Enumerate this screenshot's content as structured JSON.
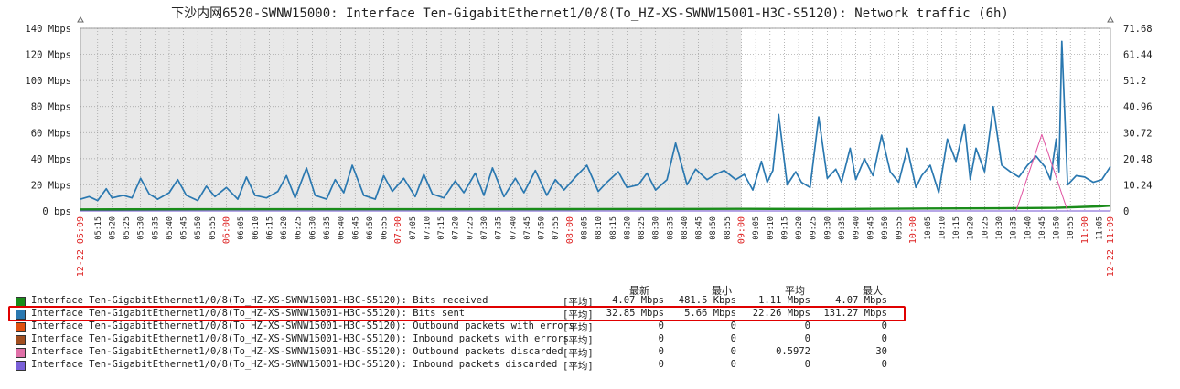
{
  "chart_data": {
    "type": "line",
    "title": "下沙内网6520-SWNW15000: Interface Ten-GigabitEthernet1/0/8(To_HZ-XS-SWNW15001-H3C-S5120): Network traffic (6h)",
    "ylabel_left_ticks": [
      "0 bps",
      "20 Mbps",
      "40 Mbps",
      "60 Mbps",
      "80 Mbps",
      "100 Mbps",
      "120 Mbps",
      "140 Mbps"
    ],
    "ylim_left": [
      0,
      140
    ],
    "ylabel_right_ticks": [
      "0",
      "10.24",
      "20.48",
      "30.72",
      "40.96",
      "51.2",
      "61.44",
      "71.68"
    ],
    "ylim_right": [
      0,
      71.68
    ],
    "x_start_label": "12-22 05:09",
    "x_end_label": "12-22 11:09",
    "x_hour_labels": [
      "06:00",
      "07:00",
      "08:00",
      "09:00",
      "10:00",
      "11:00"
    ],
    "x_minute_labels": [
      "05:15",
      "05:20",
      "05:25",
      "05:30",
      "05:35",
      "05:40",
      "05:45",
      "05:50",
      "05:55",
      "06:05",
      "06:10",
      "06:15",
      "06:20",
      "06:25",
      "06:30",
      "06:35",
      "06:40",
      "06:45",
      "06:50",
      "06:55",
      "07:05",
      "07:10",
      "07:15",
      "07:20",
      "07:25",
      "07:30",
      "07:35",
      "07:40",
      "07:45",
      "07:50",
      "07:55",
      "08:05",
      "08:10",
      "08:15",
      "08:20",
      "08:25",
      "08:30",
      "08:35",
      "08:40",
      "08:45",
      "08:50",
      "08:55",
      "09:05",
      "09:10",
      "09:15",
      "09:20",
      "09:25",
      "09:30",
      "09:35",
      "09:40",
      "09:45",
      "09:50",
      "09:55",
      "10:05",
      "10:10",
      "10:15",
      "10:20",
      "10:25",
      "10:30",
      "10:35",
      "10:40",
      "10:45",
      "10:50",
      "10:55",
      "11:05"
    ],
    "grid": true,
    "shaded_period": "05:09 - 09:00",
    "series": [
      {
        "name": "Bits received",
        "color": "#1a8c1a",
        "axis": "left",
        "unit": "Mbps",
        "x": [
          "05:09",
          "06:00",
          "07:00",
          "08:00",
          "09:00",
          "09:30",
          "10:00",
          "10:30",
          "10:50",
          "11:05",
          "11:09"
        ],
        "y": [
          1.2,
          1.3,
          1.3,
          1.4,
          1.6,
          1.5,
          1.8,
          2.0,
          2.4,
          3.5,
          4.07
        ]
      },
      {
        "name": "Bits sent",
        "color": "#2a78b0",
        "axis": "left",
        "unit": "Mbps",
        "x": [
          "05:09",
          "05:12",
          "05:15",
          "05:18",
          "05:20",
          "05:24",
          "05:27",
          "05:30",
          "05:33",
          "05:36",
          "05:40",
          "05:43",
          "05:46",
          "05:50",
          "05:53",
          "05:56",
          "06:00",
          "06:04",
          "06:07",
          "06:10",
          "06:14",
          "06:18",
          "06:21",
          "06:24",
          "06:28",
          "06:31",
          "06:35",
          "06:38",
          "06:41",
          "06:44",
          "06:48",
          "06:52",
          "06:55",
          "06:58",
          "07:02",
          "07:06",
          "07:09",
          "07:12",
          "07:16",
          "07:20",
          "07:23",
          "07:27",
          "07:30",
          "07:33",
          "07:37",
          "07:41",
          "07:44",
          "07:48",
          "07:52",
          "07:55",
          "07:58",
          "08:02",
          "08:06",
          "08:10",
          "08:13",
          "08:17",
          "08:20",
          "08:24",
          "08:27",
          "08:30",
          "08:34",
          "08:37",
          "08:41",
          "08:44",
          "08:48",
          "08:51",
          "08:54",
          "08:58",
          "09:01",
          "09:04",
          "09:07",
          "09:09",
          "09:11",
          "09:13",
          "09:16",
          "09:19",
          "09:21",
          "09:24",
          "09:27",
          "09:30",
          "09:33",
          "09:35",
          "09:38",
          "09:40",
          "09:43",
          "09:46",
          "09:49",
          "09:52",
          "09:55",
          "09:58",
          "10:01",
          "10:03",
          "10:06",
          "10:09",
          "10:12",
          "10:15",
          "10:18",
          "10:20",
          "10:22",
          "10:25",
          "10:28",
          "10:31",
          "10:34",
          "10:37",
          "10:40",
          "10:43",
          "10:46",
          "10:48",
          "10:50",
          "10:51",
          "10:52",
          "10:54",
          "10:57",
          "11:00",
          "11:03",
          "11:06",
          "11:09"
        ],
        "y": [
          9,
          11,
          8,
          17,
          10,
          12,
          10,
          25,
          13,
          9,
          14,
          24,
          12,
          8,
          19,
          11,
          18,
          9,
          26,
          12,
          10,
          15,
          27,
          10,
          33,
          12,
          9,
          24,
          14,
          35,
          12,
          9,
          27,
          15,
          25,
          11,
          28,
          13,
          10,
          23,
          14,
          29,
          12,
          33,
          11,
          25,
          14,
          31,
          12,
          24,
          16,
          26,
          35,
          15,
          22,
          30,
          18,
          20,
          29,
          16,
          24,
          52,
          20,
          32,
          24,
          28,
          31,
          24,
          28,
          16,
          38,
          22,
          31,
          74,
          20,
          30,
          22,
          18,
          72,
          25,
          32,
          22,
          48,
          24,
          40,
          27,
          58,
          30,
          22,
          48,
          18,
          27,
          35,
          14,
          55,
          38,
          66,
          24,
          48,
          30,
          80,
          35,
          30,
          26,
          35,
          42,
          34,
          24,
          55,
          30,
          130,
          20,
          27,
          26,
          22,
          24,
          34
        ]
      },
      {
        "name": "Outbound packets with errors",
        "color": "#e05010",
        "axis": "right",
        "unit": "",
        "x": [
          "05:09",
          "11:09"
        ],
        "y": [
          0,
          0
        ]
      },
      {
        "name": "Inbound packets with errors",
        "color": "#a04e20",
        "axis": "right",
        "unit": "",
        "x": [
          "05:09",
          "11:09"
        ],
        "y": [
          0,
          0
        ]
      },
      {
        "name": "Outbound packets discarded",
        "color": "#e050a0",
        "axis": "right",
        "unit": "",
        "x": [
          "05:09",
          "10:36",
          "10:45",
          "10:54",
          "11:09"
        ],
        "y": [
          0,
          0,
          30,
          0,
          0
        ]
      },
      {
        "name": "Inbound packets discarded",
        "color": "#7050d0",
        "axis": "right",
        "unit": "",
        "x": [
          "05:09",
          "11:09"
        ],
        "y": [
          0,
          0
        ]
      }
    ]
  },
  "legend": {
    "headers": {
      "last": "最新",
      "min": "最小",
      "avg": "平均",
      "max": "最大"
    },
    "rows": [
      {
        "color": "#1a8c1a",
        "name": "Interface Ten-GigabitEthernet1/0/8(To_HZ-XS-SWNW15001-H3C-S5120): Bits received",
        "func": "[平均]",
        "last": "4.07 Mbps",
        "min": "481.5 Kbps",
        "avg": "1.11 Mbps",
        "max": "4.07 Mbps"
      },
      {
        "color": "#2a78b0",
        "name": "Interface Ten-GigabitEthernet1/0/8(To_HZ-XS-SWNW15001-H3C-S5120): Bits sent",
        "func": "[平均]",
        "last": "32.85 Mbps",
        "min": "5.66 Mbps",
        "avg": "22.26 Mbps",
        "max": "131.27 Mbps"
      },
      {
        "color": "#e05010",
        "name": "Interface Ten-GigabitEthernet1/0/8(To_HZ-XS-SWNW15001-H3C-S5120): Outbound packets with errors",
        "func": "[平均]",
        "last": "0",
        "min": "0",
        "avg": "0",
        "max": "0"
      },
      {
        "color": "#a04e20",
        "name": "Interface Ten-GigabitEthernet1/0/8(To_HZ-XS-SWNW15001-H3C-S5120): Inbound packets with errors",
        "func": "[平均]",
        "last": "0",
        "min": "0",
        "avg": "0",
        "max": "0"
      },
      {
        "color": "#e070a8",
        "name": "Interface Ten-GigabitEthernet1/0/8(To_HZ-XS-SWNW15001-H3C-S5120): Outbound packets discarded",
        "func": "[平均]",
        "last": "0",
        "min": "0",
        "avg": "0.5972",
        "max": "30"
      },
      {
        "color": "#7a60d8",
        "name": "Interface Ten-GigabitEthernet1/0/8(To_HZ-XS-SWNW15001-H3C-S5120): Inbound packets discarded",
        "func": "[平均]",
        "last": "0",
        "min": "0",
        "avg": "0",
        "max": "0"
      }
    ]
  }
}
